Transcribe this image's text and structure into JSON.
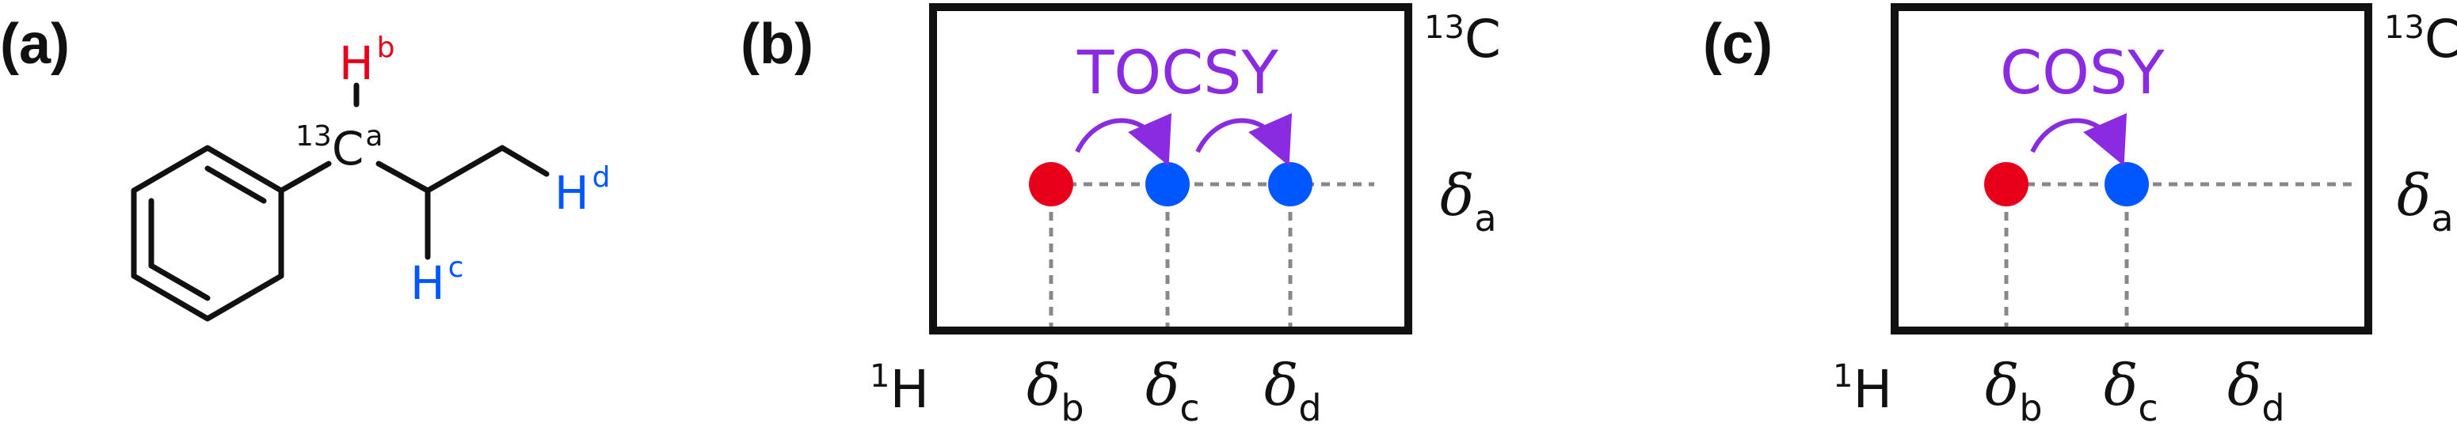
{
  "colors": {
    "red": "#e8001b",
    "blue": "#0057ff",
    "purple": "#8a2be2",
    "black": "#111111",
    "gray": "#888888"
  },
  "panel_a": {
    "label": "(a)",
    "atoms": {
      "hb": {
        "main": "H",
        "sup": "b"
      },
      "ca": {
        "pre": "13",
        "main": "C",
        "sup": "a"
      },
      "hc": {
        "main": "H",
        "sup": "c"
      },
      "hd": {
        "main": "H",
        "sup": "d"
      }
    }
  },
  "panel_b": {
    "label": "(b)",
    "technique": "TOCSY",
    "corner_label": {
      "sup": "13",
      "main": "C"
    },
    "axis_label": {
      "sup": "1",
      "main": "H"
    },
    "row_label": {
      "symbol": "δ",
      "sub": "a"
    },
    "x_labels": [
      {
        "symbol": "δ",
        "sub": "b"
      },
      {
        "symbol": "δ",
        "sub": "c"
      },
      {
        "symbol": "δ",
        "sub": "d"
      }
    ]
  },
  "panel_c": {
    "label": "(c)",
    "technique": "COSY",
    "corner_label": {
      "sup": "13",
      "main": "C"
    },
    "axis_label": {
      "sup": "1",
      "main": "H"
    },
    "row_label": {
      "symbol": "δ",
      "sub": "a"
    },
    "x_labels": [
      {
        "symbol": "δ",
        "sub": "b"
      },
      {
        "symbol": "δ",
        "sub": "c"
      },
      {
        "symbol": "δ",
        "sub": "d"
      }
    ]
  }
}
